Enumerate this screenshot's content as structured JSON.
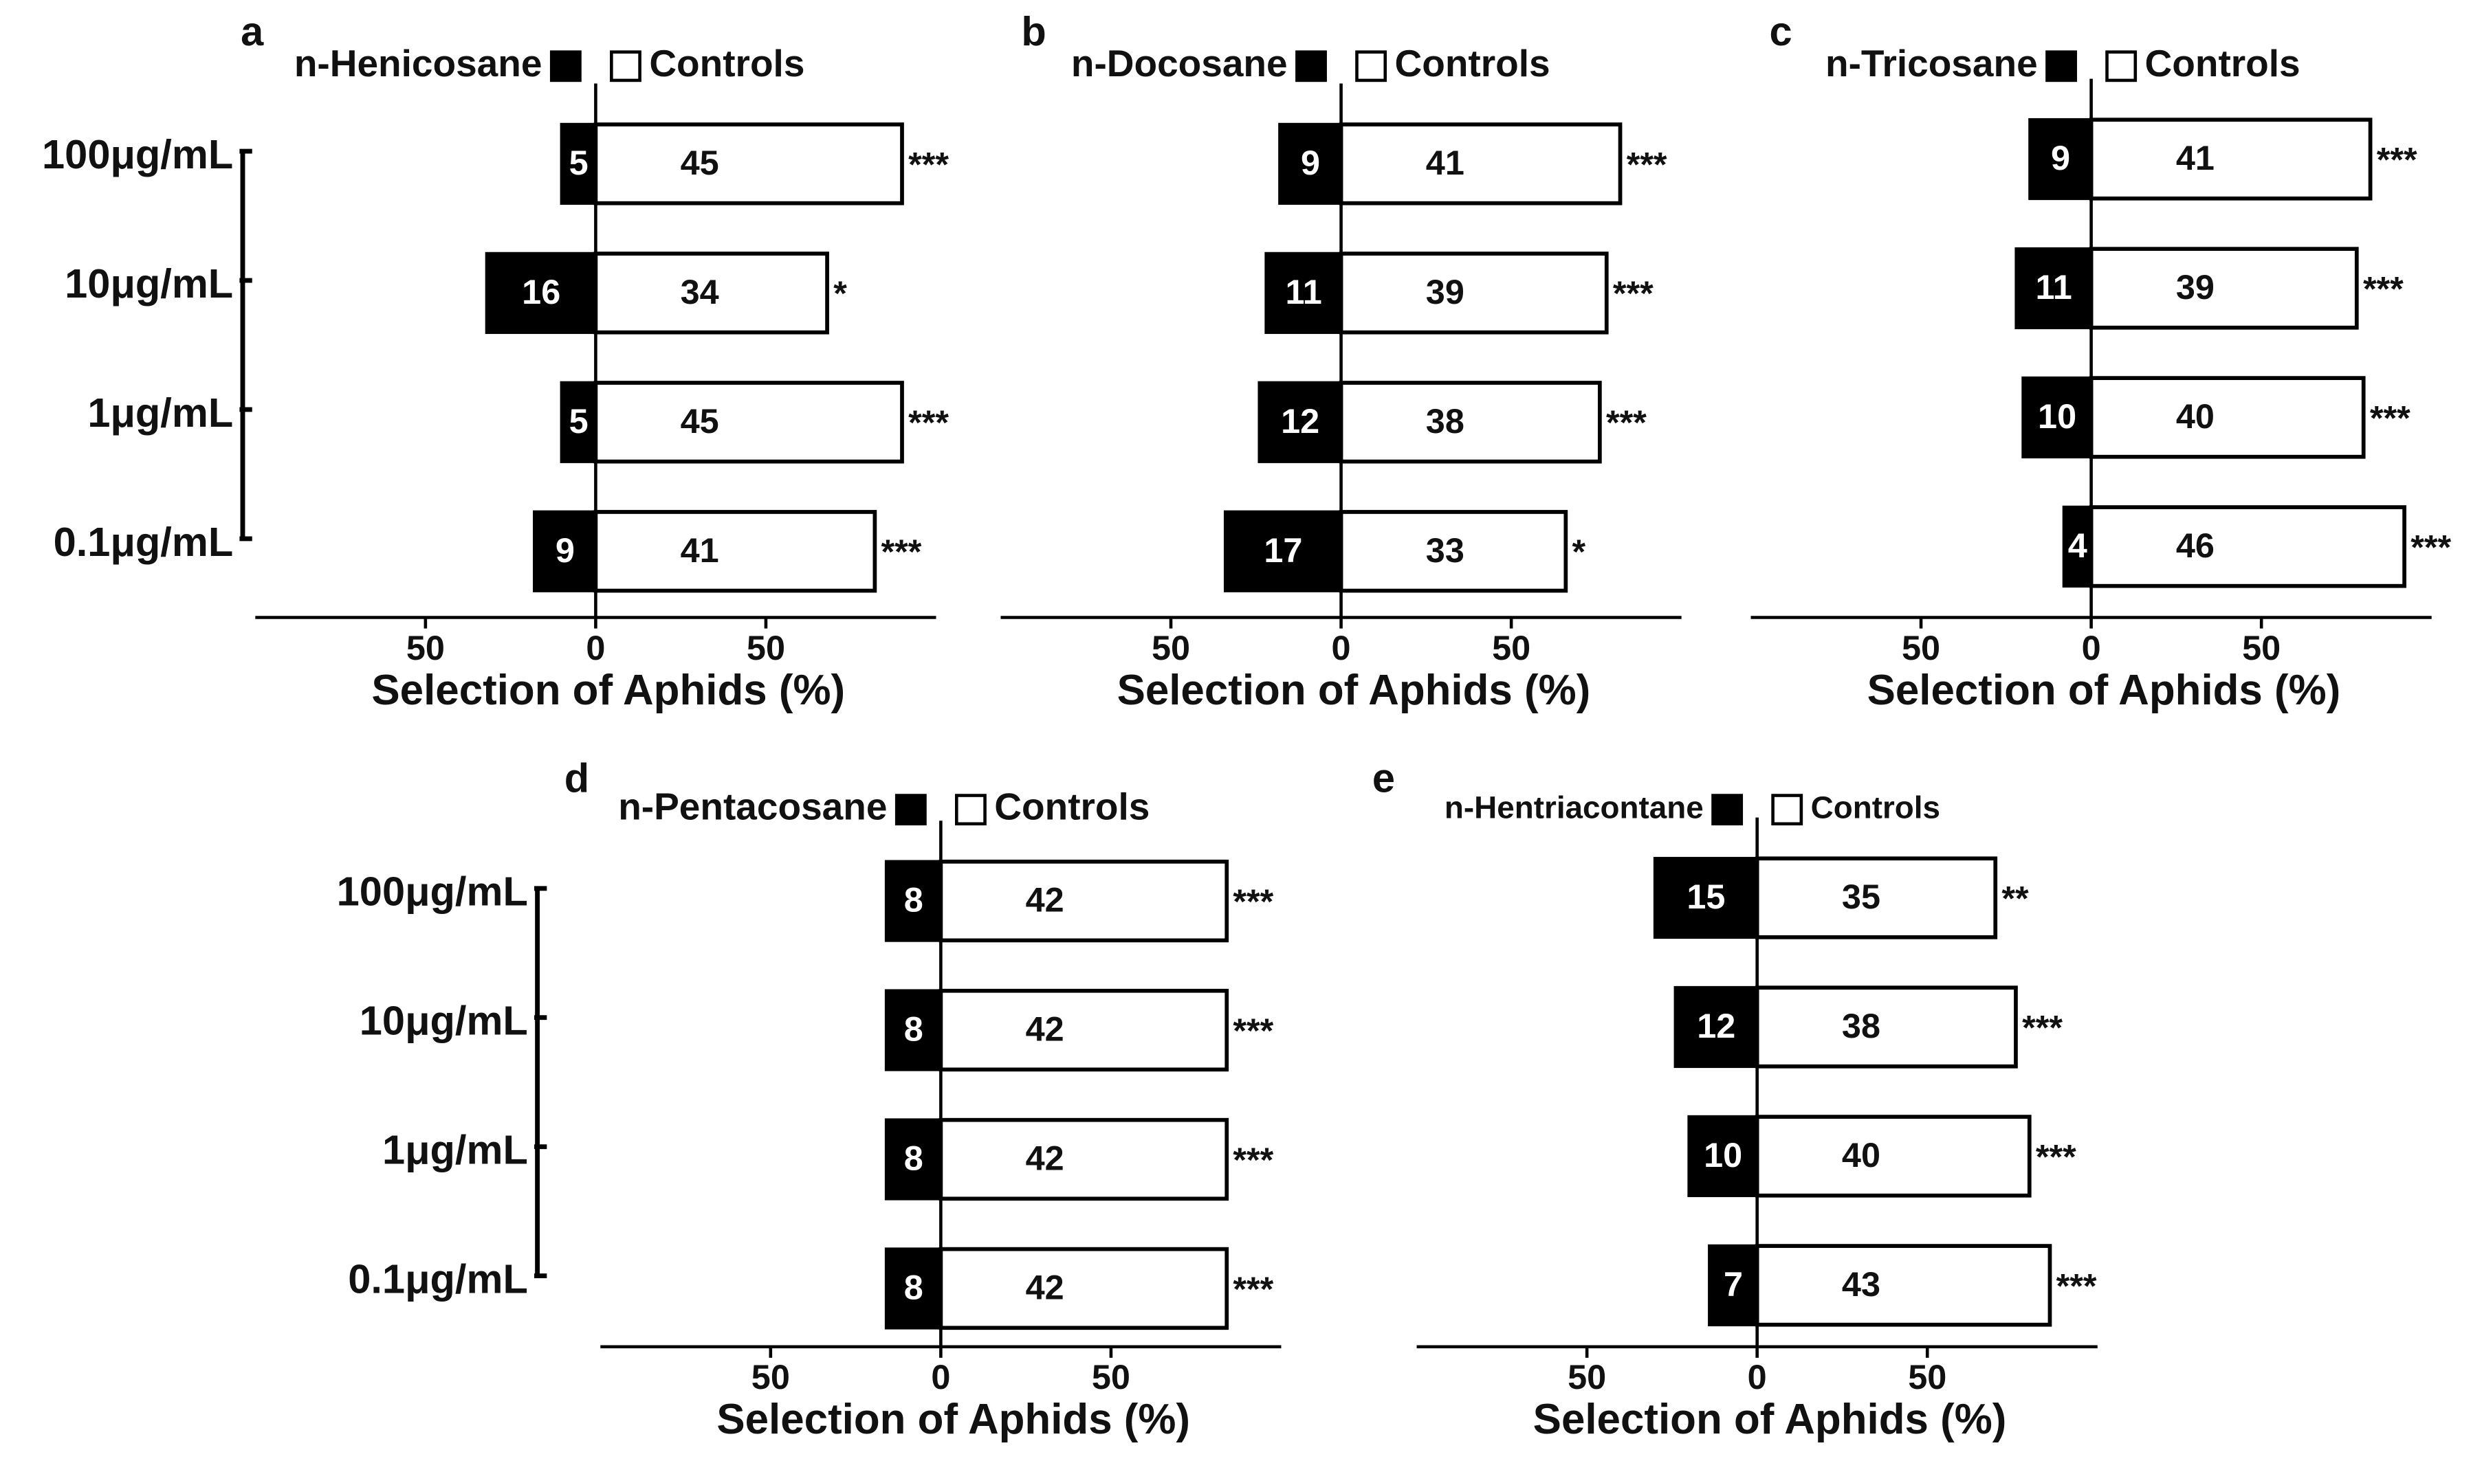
{
  "chart_data": [
    {
      "type": "bar",
      "panel_label": "a",
      "categories": [
        "100μg/mL",
        "10μg/mL",
        "1μg/mL",
        "0.1μg/mL"
      ],
      "series": [
        {
          "name": "n-Henicosane",
          "color": "#000000",
          "values": [
            5,
            16,
            5,
            9
          ]
        },
        {
          "name": "Controls",
          "color": "#ffffff",
          "values": [
            45,
            34,
            45,
            41
          ]
        }
      ],
      "annotations": [
        "***",
        "*",
        "***",
        "***"
      ],
      "xlabel": "Selection of Aphids (%)",
      "xlim": [
        -50,
        50
      ],
      "xticks": [
        {
          "value": -25,
          "label": "50"
        },
        0,
        {
          "value": 25,
          "label": "50"
        }
      ]
    },
    {
      "type": "bar",
      "panel_label": "b",
      "series": [
        {
          "name": "n-Docosane",
          "color": "#000000",
          "values": [
            9,
            11,
            12,
            17
          ]
        },
        {
          "name": "Controls",
          "color": "#ffffff",
          "values": [
            41,
            39,
            38,
            33
          ]
        }
      ],
      "annotations": [
        "***",
        "***",
        "***",
        "*"
      ],
      "xlabel": "Selection of Aphids (%)",
      "xlim": [
        -50,
        50
      ],
      "xticks": [
        {
          "value": -25,
          "label": "50"
        },
        0,
        {
          "value": 25,
          "label": "50"
        }
      ]
    },
    {
      "type": "bar",
      "panel_label": "c",
      "series": [
        {
          "name": "n-Tricosane",
          "color": "#000000",
          "values": [
            9,
            11,
            10,
            4
          ]
        },
        {
          "name": "Controls",
          "color": "#ffffff",
          "values": [
            41,
            39,
            40,
            46
          ]
        }
      ],
      "annotations": [
        "***",
        "***",
        "***",
        "***"
      ],
      "xlabel": "Selection of Aphids (%)",
      "xlim": [
        -50,
        50
      ],
      "xticks": [
        {
          "value": -25,
          "label": "50"
        },
        0,
        {
          "value": 25,
          "label": "50"
        }
      ]
    },
    {
      "type": "bar",
      "panel_label": "d",
      "categories": [
        "100μg/mL",
        "10μg/mL",
        "1μg/mL",
        "0.1μg/mL"
      ],
      "series": [
        {
          "name": "n-Pentacosane",
          "color": "#000000",
          "values": [
            8,
            8,
            8,
            8
          ]
        },
        {
          "name": "Controls",
          "color": "#ffffff",
          "values": [
            42,
            42,
            42,
            42
          ]
        }
      ],
      "annotations": [
        "***",
        "***",
        "***",
        "***"
      ],
      "xlabel": "Selection of Aphids (%)",
      "xlim": [
        -50,
        50
      ],
      "xticks": [
        {
          "value": -25,
          "label": "50"
        },
        0,
        {
          "value": 25,
          "label": "50"
        }
      ]
    },
    {
      "type": "bar",
      "panel_label": "e",
      "series": [
        {
          "name": "n-Hentriacontane",
          "color": "#000000",
          "values": [
            15,
            12,
            10,
            7
          ]
        },
        {
          "name": "Controls",
          "color": "#ffffff",
          "values": [
            35,
            38,
            40,
            43
          ]
        }
      ],
      "annotations": [
        "**",
        "***",
        "***",
        "***"
      ],
      "xlabel": "Selection of Aphids (%)",
      "xlim": [
        -50,
        50
      ],
      "xticks": [
        {
          "value": -25,
          "label": "50"
        },
        0,
        {
          "value": 25,
          "label": "50"
        }
      ]
    }
  ]
}
